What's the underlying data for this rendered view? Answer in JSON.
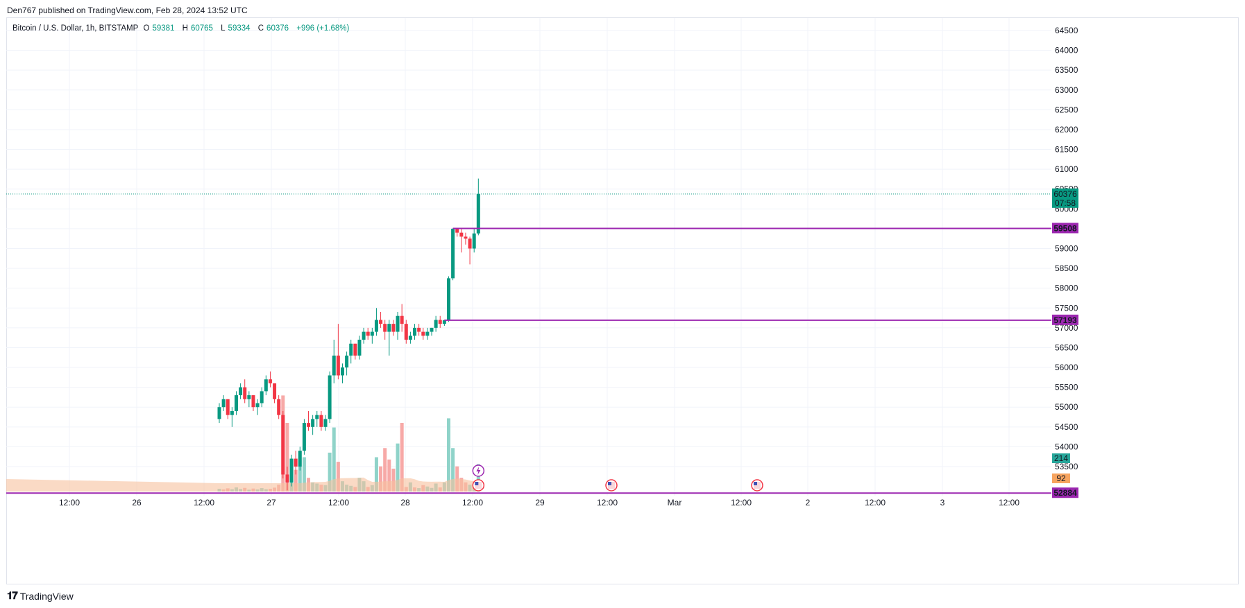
{
  "header": {
    "published": "Den767 published on TradingView.com, Feb 28, 2024 13:52 UTC"
  },
  "legend": {
    "symbol": "Bitcoin / U.S. Dollar, 1h, BITSTAMP",
    "o_label": "O",
    "o_value": "59381",
    "h_label": "H",
    "h_value": "60765",
    "l_label": "L",
    "l_value": "59334",
    "c_label": "C",
    "c_value": "60376",
    "change": "+996 (+1.68%)"
  },
  "footer": {
    "brand": "TradingView"
  },
  "colors": {
    "up": "#089981",
    "down": "#f23645",
    "up_volume": "#8fd3c9",
    "down_volume": "#f7a9a7",
    "volume_ma": "#f7c29f",
    "level": "#9c27b0"
  },
  "chart_data": {
    "type": "candlestick",
    "ylim": [
      52884,
      64500
    ],
    "y_ticks": [
      53500,
      54000,
      54500,
      55000,
      55500,
      56000,
      56500,
      57000,
      57500,
      58000,
      58500,
      59000,
      59500,
      60000,
      60500,
      61000,
      61500,
      62000,
      62500,
      63000,
      63500,
      64000,
      64500
    ],
    "x_labels": [
      "12:00",
      "26",
      "12:00",
      "27",
      "12:00",
      "28",
      "12:00",
      "29",
      "12:00",
      "Mar",
      "12:00",
      "2",
      "12:00",
      "3",
      "12:00"
    ],
    "candles": [
      [
        54700,
        55100,
        54600,
        55000
      ],
      [
        55000,
        55300,
        54900,
        55200
      ],
      [
        55200,
        55200,
        54700,
        54800
      ],
      [
        54800,
        55000,
        54500,
        54900
      ],
      [
        54900,
        55400,
        54800,
        55300
      ],
      [
        55300,
        55600,
        55200,
        55500
      ],
      [
        55500,
        55700,
        55100,
        55200
      ],
      [
        55200,
        55400,
        55000,
        55300
      ],
      [
        55300,
        55300,
        54900,
        55000
      ],
      [
        55000,
        55200,
        54800,
        55100
      ],
      [
        55100,
        55500,
        55000,
        55400
      ],
      [
        55400,
        55800,
        55300,
        55700
      ],
      [
        55700,
        55900,
        55500,
        55600
      ],
      [
        55600,
        55600,
        55100,
        55200
      ],
      [
        55200,
        55300,
        54700,
        54800
      ],
      [
        54800,
        54900,
        53200,
        53300
      ],
      [
        53300,
        53500,
        52900,
        53100
      ],
      [
        53100,
        53800,
        53000,
        53700
      ],
      [
        53700,
        53900,
        53300,
        53500
      ],
      [
        53500,
        54000,
        53400,
        53900
      ],
      [
        53900,
        54700,
        53800,
        54600
      ],
      [
        54600,
        54900,
        54400,
        54500
      ],
      [
        54500,
        54800,
        54300,
        54700
      ],
      [
        54700,
        54900,
        54500,
        54800
      ],
      [
        54800,
        54900,
        54400,
        54500
      ],
      [
        54500,
        54800,
        54400,
        54700
      ],
      [
        54700,
        55900,
        54600,
        55800
      ],
      [
        55800,
        56700,
        55600,
        56300
      ],
      [
        56300,
        57100,
        55700,
        55800
      ],
      [
        55800,
        56100,
        55600,
        56000
      ],
      [
        56000,
        56400,
        55800,
        56300
      ],
      [
        56300,
        56700,
        56100,
        56600
      ],
      [
        56600,
        56600,
        56200,
        56300
      ],
      [
        56300,
        56800,
        56200,
        56700
      ],
      [
        56700,
        57000,
        56600,
        56900
      ],
      [
        56900,
        57000,
        56700,
        56800
      ],
      [
        56800,
        57000,
        56600,
        56900
      ],
      [
        56900,
        57500,
        56800,
        57200
      ],
      [
        57200,
        57400,
        57000,
        57100
      ],
      [
        57100,
        57200,
        56700,
        56900
      ],
      [
        56900,
        57200,
        56300,
        57100
      ],
      [
        57100,
        57200,
        56800,
        56900
      ],
      [
        56900,
        57400,
        56700,
        57300
      ],
      [
        57300,
        57600,
        56900,
        57100
      ],
      [
        57100,
        57200,
        56600,
        56700
      ],
      [
        56700,
        56900,
        56600,
        56800
      ],
      [
        56800,
        57100,
        56700,
        57000
      ],
      [
        57000,
        57100,
        56800,
        56900
      ],
      [
        56900,
        57000,
        56700,
        56800
      ],
      [
        56800,
        57000,
        56700,
        56900
      ],
      [
        56900,
        57000,
        56800,
        57000
      ],
      [
        57000,
        57300,
        56900,
        57200
      ],
      [
        57200,
        57300,
        57000,
        57100
      ],
      [
        57100,
        57200,
        57050,
        57193
      ],
      [
        57193,
        58300,
        57150,
        58250
      ],
      [
        58250,
        59508,
        58200,
        59500
      ],
      [
        59500,
        59500,
        59300,
        59400
      ],
      [
        59400,
        59500,
        58900,
        59300
      ],
      [
        59300,
        59400,
        59100,
        59250
      ],
      [
        59250,
        59300,
        58600,
        59000
      ],
      [
        59000,
        59500,
        58900,
        59381
      ],
      [
        59381,
        60765,
        59334,
        60376
      ]
    ],
    "volume": [
      {
        "v": 12,
        "up": true
      },
      {
        "v": 9,
        "up": false
      },
      {
        "v": 14,
        "up": false
      },
      {
        "v": 10,
        "up": true
      },
      {
        "v": 18,
        "up": true
      },
      {
        "v": 11,
        "up": true
      },
      {
        "v": 16,
        "up": false
      },
      {
        "v": 8,
        "up": true
      },
      {
        "v": 13,
        "up": false
      },
      {
        "v": 9,
        "up": true
      },
      {
        "v": 15,
        "up": true
      },
      {
        "v": 10,
        "up": true
      },
      {
        "v": 12,
        "up": false
      },
      {
        "v": 17,
        "up": false
      },
      {
        "v": 30,
        "up": false
      },
      {
        "v": 420,
        "up": false
      },
      {
        "v": 300,
        "up": false
      },
      {
        "v": 140,
        "up": true
      },
      {
        "v": 95,
        "up": false
      },
      {
        "v": 110,
        "up": true
      },
      {
        "v": 150,
        "up": true
      },
      {
        "v": 60,
        "up": false
      },
      {
        "v": 40,
        "up": true
      },
      {
        "v": 35,
        "up": true
      },
      {
        "v": 30,
        "up": false
      },
      {
        "v": 28,
        "up": true
      },
      {
        "v": 170,
        "up": true
      },
      {
        "v": 280,
        "up": true
      },
      {
        "v": 130,
        "up": false
      },
      {
        "v": 45,
        "up": true
      },
      {
        "v": 30,
        "up": true
      },
      {
        "v": 25,
        "up": true
      },
      {
        "v": 20,
        "up": false
      },
      {
        "v": 60,
        "up": true
      },
      {
        "v": 45,
        "up": true
      },
      {
        "v": 20,
        "up": false
      },
      {
        "v": 28,
        "up": true
      },
      {
        "v": 150,
        "up": true
      },
      {
        "v": 110,
        "up": false
      },
      {
        "v": 190,
        "up": false
      },
      {
        "v": 140,
        "up": false
      },
      {
        "v": 100,
        "up": false
      },
      {
        "v": 210,
        "up": true
      },
      {
        "v": 300,
        "up": false
      },
      {
        "v": 20,
        "up": false
      },
      {
        "v": 40,
        "up": true
      },
      {
        "v": 18,
        "up": false
      },
      {
        "v": 15,
        "up": true
      },
      {
        "v": 28,
        "up": false
      },
      {
        "v": 22,
        "up": true
      },
      {
        "v": 16,
        "up": true
      },
      {
        "v": 35,
        "up": true
      },
      {
        "v": 18,
        "up": false
      },
      {
        "v": 40,
        "up": true
      },
      {
        "v": 320,
        "up": true
      },
      {
        "v": 190,
        "up": true
      },
      {
        "v": 110,
        "up": false
      },
      {
        "v": 60,
        "up": false
      },
      {
        "v": 40,
        "up": false
      },
      {
        "v": 30,
        "up": true
      },
      {
        "v": 20,
        "up": true
      },
      {
        "v": 120,
        "up": true
      }
    ],
    "levels": [
      {
        "value": 59508,
        "label": "59508"
      },
      {
        "value": 57193,
        "label": "57193"
      },
      {
        "value": 52884,
        "label": "52884"
      }
    ],
    "last_price": {
      "value": 60376,
      "label": "60376",
      "countdown": "07:58"
    },
    "volume_badges": [
      {
        "label": "214",
        "color": "#26a69a"
      },
      {
        "label": "92",
        "color": "#f7a45f"
      }
    ],
    "event_icons": [
      "lightning-icon",
      "us-flag-icon",
      "us-flag-icon",
      "us-flag-icon"
    ]
  }
}
